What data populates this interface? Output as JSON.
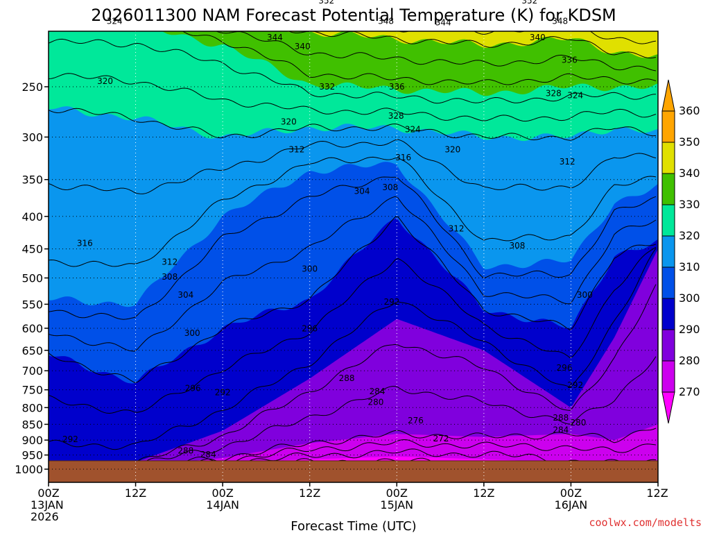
{
  "chart_data": {
    "type": "contour",
    "title": "2026011300 NAM Forecast Potential Temperature (K) for KDSM",
    "xlabel": "Forecast Time (UTC)",
    "ylabel": "Pressure (hPa)",
    "credit": "coolwx.com/modelts",
    "x_range_hours": [
      0,
      84
    ],
    "y_ticks": [
      250,
      300,
      350,
      400,
      450,
      500,
      550,
      600,
      650,
      700,
      750,
      800,
      850,
      900,
      950,
      1000
    ],
    "x_ticks": [
      {
        "hour": 0,
        "lines": [
          "00Z",
          "13JAN",
          "2026"
        ]
      },
      {
        "hour": 12,
        "lines": [
          "12Z"
        ]
      },
      {
        "hour": 24,
        "lines": [
          "00Z",
          "14JAN"
        ]
      },
      {
        "hour": 36,
        "lines": [
          "12Z"
        ]
      },
      {
        "hour": 48,
        "lines": [
          "00Z",
          "15JAN"
        ]
      },
      {
        "hour": 60,
        "lines": [
          "12Z"
        ]
      },
      {
        "hour": 72,
        "lines": [
          "00Z",
          "16JAN"
        ]
      },
      {
        "hour": 84,
        "lines": [
          "12Z"
        ]
      }
    ],
    "colorbar": {
      "levels": [
        270,
        280,
        290,
        300,
        310,
        320,
        330,
        340,
        350,
        360
      ],
      "colors": [
        "#ff00ff",
        "#cc00ee",
        "#8000dd",
        "#0000cc",
        "#0050e8",
        "#0a96ee",
        "#00e89a",
        "#40c000",
        "#e0e000",
        "#ffa500"
      ],
      "labels": [
        "270",
        "280",
        "290",
        "300",
        "310",
        "320",
        "330",
        "340",
        "350",
        "360"
      ]
    },
    "series": [
      {
        "name": "theta-270",
        "hours": [
          6,
          18,
          30,
          42,
          48,
          54,
          66,
          72
        ],
        "pressure": [
          1000,
          1000,
          970,
          960,
          955,
          960,
          970,
          1000
        ]
      },
      {
        "name": "theta-280",
        "hours": [
          0,
          12,
          24,
          36,
          48,
          60,
          72,
          78,
          84
        ],
        "pressure": [
          1000,
          990,
          960,
          910,
          880,
          890,
          880,
          900,
          850
        ]
      },
      {
        "name": "theta-290",
        "hours": [
          0,
          12,
          24,
          36,
          48,
          60,
          72,
          78,
          84
        ],
        "pressure": [
          990,
          975,
          870,
          720,
          580,
          650,
          800,
          620,
          450
        ]
      },
      {
        "name": "theta-300",
        "hours": [
          0,
          12,
          24,
          36,
          48,
          60,
          72,
          78,
          84
        ],
        "pressure": [
          660,
          730,
          600,
          540,
          400,
          560,
          600,
          460,
          440
        ]
      },
      {
        "name": "theta-310",
        "hours": [
          0,
          12,
          24,
          36,
          48,
          60,
          72,
          78,
          84
        ],
        "pressure": [
          540,
          550,
          400,
          340,
          330,
          480,
          470,
          380,
          360
        ]
      },
      {
        "name": "theta-320",
        "hours": [
          0,
          12,
          24,
          36,
          48,
          60,
          72,
          78,
          84
        ],
        "pressure": [
          270,
          280,
          300,
          290,
          290,
          300,
          300,
          290,
          295
        ]
      },
      {
        "name": "theta-330",
        "hours": [
          0,
          12,
          24,
          36,
          48,
          60,
          72,
          78,
          84
        ],
        "pressure": [
          200,
          200,
          215,
          248,
          252,
          256,
          250,
          250,
          250
        ]
      },
      {
        "name": "theta-340",
        "hours": [
          0,
          12,
          24,
          36,
          48,
          60,
          72,
          78,
          84
        ],
        "pressure": [
          190,
          190,
          195,
          205,
          210,
          215,
          210,
          220,
          225
        ]
      },
      {
        "name": "theta-350",
        "hours": [
          0,
          12,
          24,
          36,
          48,
          60,
          72,
          78,
          84
        ],
        "pressure": [
          180,
          180,
          180,
          185,
          190,
          190,
          185,
          195,
          200
        ]
      }
    ],
    "contour_labels": [
      {
        "text": "352",
        "hour": 38.3,
        "pressure": 183
      },
      {
        "text": "352",
        "hour": 66.3,
        "pressure": 183
      },
      {
        "text": "324",
        "hour": 9.1,
        "pressure": 197
      },
      {
        "text": "348",
        "hour": 46.5,
        "pressure": 197
      },
      {
        "text": "344",
        "hour": 54.4,
        "pressure": 198
      },
      {
        "text": "348",
        "hour": 70.5,
        "pressure": 197
      },
      {
        "text": "344",
        "hour": 31.2,
        "pressure": 209
      },
      {
        "text": "340",
        "hour": 35.0,
        "pressure": 216
      },
      {
        "text": "340",
        "hour": 67.4,
        "pressure": 209
      },
      {
        "text": "336",
        "hour": 71.8,
        "pressure": 227
      },
      {
        "text": "320",
        "hour": 7.8,
        "pressure": 245
      },
      {
        "text": "332",
        "hour": 38.4,
        "pressure": 250
      },
      {
        "text": "336",
        "hour": 48.0,
        "pressure": 250
      },
      {
        "text": "328",
        "hour": 69.6,
        "pressure": 256
      },
      {
        "text": "324",
        "hour": 72.6,
        "pressure": 258
      },
      {
        "text": "328",
        "hour": 47.9,
        "pressure": 278
      },
      {
        "text": "320",
        "hour": 33.1,
        "pressure": 284
      },
      {
        "text": "324",
        "hour": 50.2,
        "pressure": 292
      },
      {
        "text": "312",
        "hour": 34.2,
        "pressure": 314
      },
      {
        "text": "320",
        "hour": 55.7,
        "pressure": 314
      },
      {
        "text": "316",
        "hour": 48.9,
        "pressure": 323
      },
      {
        "text": "312",
        "hour": 71.5,
        "pressure": 328
      },
      {
        "text": "304",
        "hour": 43.2,
        "pressure": 365
      },
      {
        "text": "308",
        "hour": 47.1,
        "pressure": 360
      },
      {
        "text": "312",
        "hour": 56.2,
        "pressure": 418
      },
      {
        "text": "316",
        "hour": 5.0,
        "pressure": 441
      },
      {
        "text": "308",
        "hour": 64.6,
        "pressure": 445
      },
      {
        "text": "312",
        "hour": 16.7,
        "pressure": 472
      },
      {
        "text": "300",
        "hour": 36.0,
        "pressure": 484
      },
      {
        "text": "308",
        "hour": 16.7,
        "pressure": 498
      },
      {
        "text": "304",
        "hour": 18.9,
        "pressure": 532
      },
      {
        "text": "300",
        "hour": 73.9,
        "pressure": 532
      },
      {
        "text": "292",
        "hour": 47.3,
        "pressure": 545
      },
      {
        "text": "296",
        "hour": 36.0,
        "pressure": 601
      },
      {
        "text": "300",
        "hour": 19.8,
        "pressure": 611
      },
      {
        "text": "296",
        "hour": 71.1,
        "pressure": 693
      },
      {
        "text": "288",
        "hour": 41.1,
        "pressure": 719
      },
      {
        "text": "296",
        "hour": 19.9,
        "pressure": 746
      },
      {
        "text": "292",
        "hour": 24.0,
        "pressure": 757
      },
      {
        "text": "292",
        "hour": 72.6,
        "pressure": 738
      },
      {
        "text": "284",
        "hour": 45.3,
        "pressure": 754
      },
      {
        "text": "280",
        "hour": 45.1,
        "pressure": 784
      },
      {
        "text": "288",
        "hour": 70.6,
        "pressure": 830
      },
      {
        "text": "280",
        "hour": 73.0,
        "pressure": 845
      },
      {
        "text": "276",
        "hour": 50.6,
        "pressure": 838
      },
      {
        "text": "284",
        "hour": 70.6,
        "pressure": 867
      },
      {
        "text": "272",
        "hour": 54.1,
        "pressure": 895
      },
      {
        "text": "292",
        "hour": 3.0,
        "pressure": 897
      },
      {
        "text": "288",
        "hour": 18.9,
        "pressure": 936
      },
      {
        "text": "284",
        "hour": 22.0,
        "pressure": 948
      }
    ]
  }
}
